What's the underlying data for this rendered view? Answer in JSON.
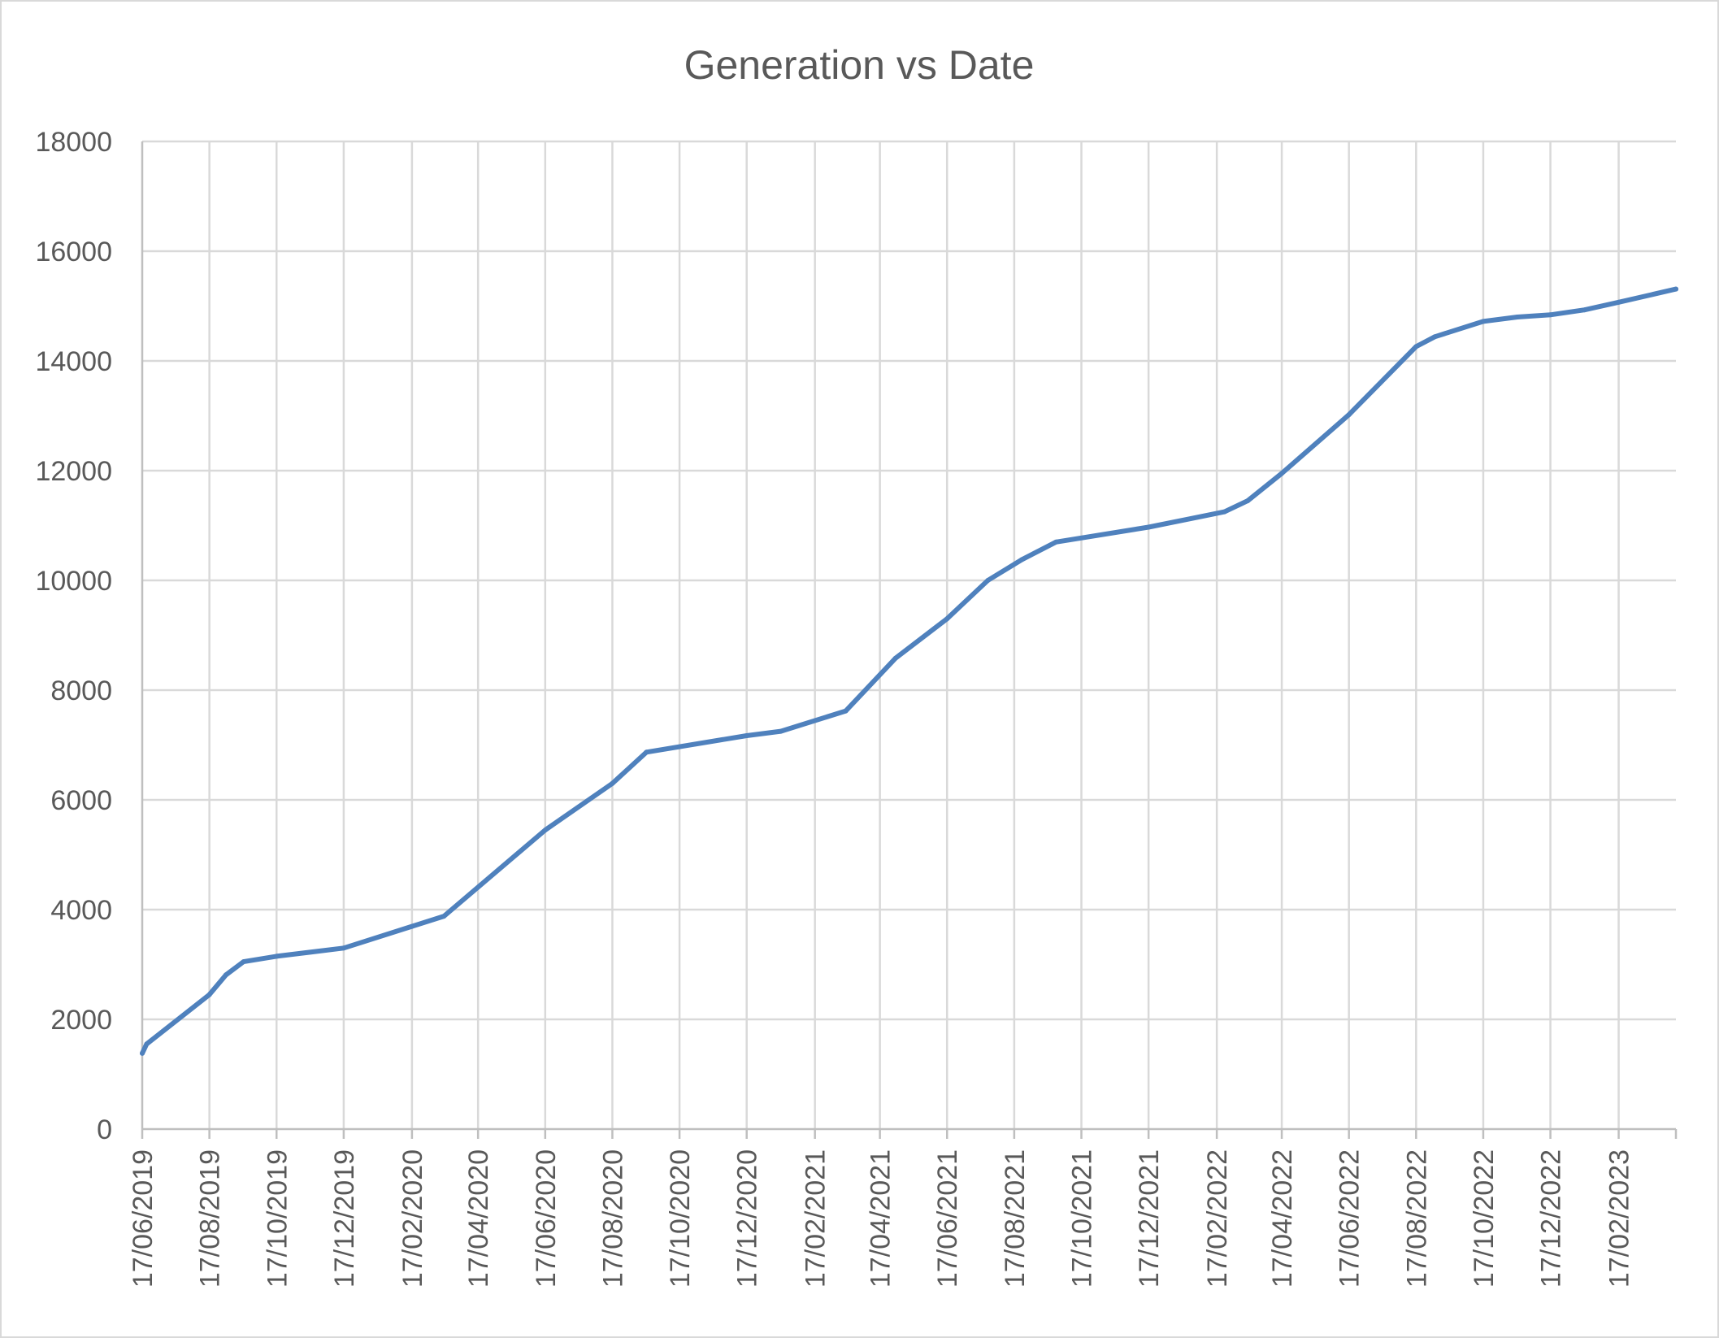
{
  "chart_data": {
    "type": "line",
    "title": "Generation vs Date",
    "xlabel": "",
    "ylabel": "",
    "ylim": [
      0,
      18000
    ],
    "xlim": [
      "2019-06-17",
      "2023-04-10"
    ],
    "y_ticks": [
      "0",
      "2000",
      "4000",
      "6000",
      "8000",
      "10000",
      "12000",
      "14000",
      "16000",
      "18000"
    ],
    "x_ticks": [
      {
        "date": "2019-06-17",
        "label": "17/06/2019"
      },
      {
        "date": "2019-08-17",
        "label": "17/08/2019"
      },
      {
        "date": "2019-10-17",
        "label": "17/10/2019"
      },
      {
        "date": "2019-12-17",
        "label": "17/12/2019"
      },
      {
        "date": "2020-02-17",
        "label": "17/02/2020"
      },
      {
        "date": "2020-04-17",
        "label": "17/04/2020"
      },
      {
        "date": "2020-06-17",
        "label": "17/06/2020"
      },
      {
        "date": "2020-08-17",
        "label": "17/08/2020"
      },
      {
        "date": "2020-10-17",
        "label": "17/10/2020"
      },
      {
        "date": "2020-12-17",
        "label": "17/12/2020"
      },
      {
        "date": "2021-02-17",
        "label": "17/02/2021"
      },
      {
        "date": "2021-04-17",
        "label": "17/04/2021"
      },
      {
        "date": "2021-06-17",
        "label": "17/06/2021"
      },
      {
        "date": "2021-08-17",
        "label": "17/08/2021"
      },
      {
        "date": "2021-10-17",
        "label": "17/10/2021"
      },
      {
        "date": "2021-12-17",
        "label": "17/12/2021"
      },
      {
        "date": "2022-02-17",
        "label": "17/02/2022"
      },
      {
        "date": "2022-04-17",
        "label": "17/04/2022"
      },
      {
        "date": "2022-06-17",
        "label": "17/06/2022"
      },
      {
        "date": "2022-08-17",
        "label": "17/08/2022"
      },
      {
        "date": "2022-10-17",
        "label": "17/10/2022"
      },
      {
        "date": "2022-12-17",
        "label": "17/12/2022"
      },
      {
        "date": "2023-02-17",
        "label": "17/02/2023"
      }
    ],
    "grid": true,
    "legend": "none",
    "series": [
      {
        "color": "#4f81bd",
        "points": [
          [
            "2019-06-17",
            1380
          ],
          [
            "2019-06-21",
            1550
          ],
          [
            "2019-08-17",
            2450
          ],
          [
            "2019-09-01",
            2810
          ],
          [
            "2019-09-17",
            3050
          ],
          [
            "2019-10-17",
            3150
          ],
          [
            "2019-12-17",
            3300
          ],
          [
            "2020-03-17",
            3880
          ],
          [
            "2020-06-17",
            5450
          ],
          [
            "2020-08-17",
            6300
          ],
          [
            "2020-09-17",
            6870
          ],
          [
            "2020-12-17",
            7170
          ],
          [
            "2021-01-17",
            7250
          ],
          [
            "2021-03-17",
            7620
          ],
          [
            "2021-05-01",
            8580
          ],
          [
            "2021-06-17",
            9300
          ],
          [
            "2021-07-24",
            10000
          ],
          [
            "2021-08-24",
            10380
          ],
          [
            "2021-09-24",
            10700
          ],
          [
            "2021-12-17",
            10970
          ],
          [
            "2022-02-24",
            11250
          ],
          [
            "2022-03-17",
            11450
          ],
          [
            "2022-04-17",
            11950
          ],
          [
            "2022-06-17",
            13020
          ],
          [
            "2022-08-17",
            14260
          ],
          [
            "2022-09-03",
            14440
          ],
          [
            "2022-10-17",
            14720
          ],
          [
            "2022-11-17",
            14800
          ],
          [
            "2022-12-17",
            14840
          ],
          [
            "2023-01-17",
            14930
          ],
          [
            "2023-02-17",
            15070
          ],
          [
            "2023-04-10",
            15310
          ]
        ]
      }
    ]
  }
}
